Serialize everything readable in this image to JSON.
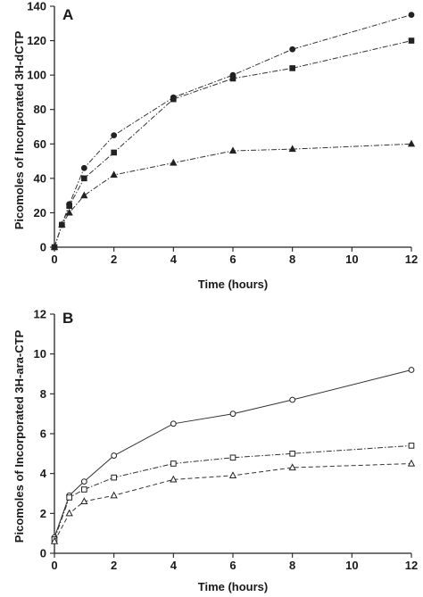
{
  "chart_data": [
    {
      "type": "line",
      "panel_label": "A",
      "xlabel": "Time (hours)",
      "ylabel": "Picomoles of Incorporated 3H-dCTP",
      "xlim": [
        0,
        12
      ],
      "ylim": [
        0,
        140
      ],
      "xticks": [
        "0",
        "2",
        "4",
        "6",
        "8",
        "10",
        "12"
      ],
      "yticks": [
        "0",
        "20",
        "40",
        "60",
        "80",
        "100",
        "120",
        "140"
      ],
      "grid": false,
      "series": [
        {
          "marker": "filled-circle",
          "line": "dash-dot",
          "color": "#222222",
          "x": [
            0,
            0.25,
            0.5,
            1,
            2,
            4,
            6,
            8,
            12
          ],
          "y": [
            0,
            13,
            25,
            46,
            65,
            87,
            100,
            115,
            135
          ]
        },
        {
          "marker": "filled-square",
          "line": "dash-dot",
          "color": "#222222",
          "x": [
            0,
            0.25,
            0.5,
            1,
            2,
            4,
            6,
            8,
            12
          ],
          "y": [
            0,
            13,
            24,
            40,
            55,
            86,
            98,
            104,
            120
          ]
        },
        {
          "marker": "filled-triangle",
          "line": "dash-dot",
          "color": "#222222",
          "x": [
            0,
            0.25,
            0.5,
            1,
            2,
            4,
            6,
            8,
            12
          ],
          "y": [
            0,
            13,
            20,
            30,
            42,
            49,
            56,
            57,
            60
          ]
        }
      ]
    },
    {
      "type": "line",
      "panel_label": "B",
      "xlabel": "Time (hours)",
      "ylabel": "Picomoles of Incorporated 3H-ara-CTP",
      "xlim": [
        0,
        12
      ],
      "ylim": [
        0,
        12
      ],
      "xticks": [
        "0",
        "2",
        "4",
        "6",
        "8",
        "10",
        "12"
      ],
      "yticks": [
        "0",
        "2",
        "4",
        "6",
        "8",
        "10",
        "12"
      ],
      "grid": false,
      "series": [
        {
          "marker": "open-circle",
          "line": "solid",
          "color": "#222222",
          "x": [
            0,
            0.5,
            1,
            2,
            4,
            6,
            8,
            12
          ],
          "y": [
            0.8,
            2.9,
            3.6,
            4.9,
            6.5,
            7.0,
            7.7,
            9.2
          ]
        },
        {
          "marker": "open-square",
          "line": "dash-dot",
          "color": "#222222",
          "x": [
            0,
            0.5,
            1,
            2,
            4,
            6,
            8,
            12
          ],
          "y": [
            0.7,
            2.8,
            3.2,
            3.8,
            4.5,
            4.8,
            5.0,
            5.4
          ]
        },
        {
          "marker": "open-triangle",
          "line": "dashed",
          "color": "#222222",
          "x": [
            0,
            0.5,
            1,
            2,
            4,
            6,
            8,
            12
          ],
          "y": [
            0.6,
            2.0,
            2.6,
            2.9,
            3.7,
            3.9,
            4.3,
            4.5
          ]
        }
      ]
    }
  ]
}
